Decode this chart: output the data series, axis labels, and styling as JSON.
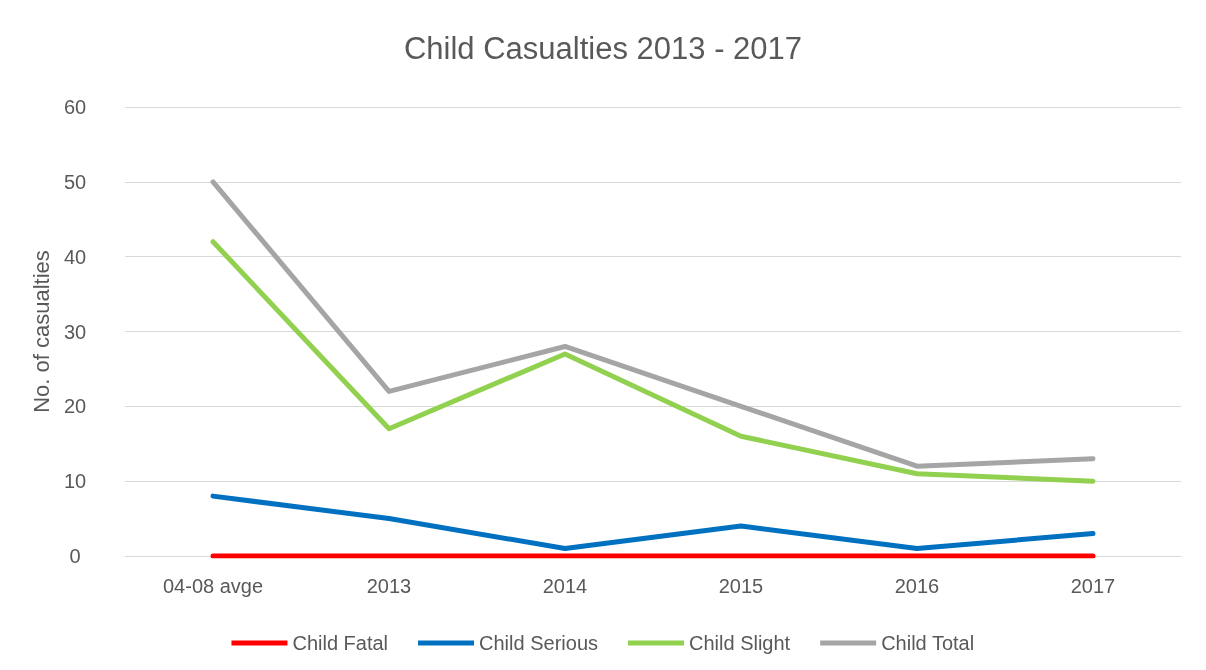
{
  "chart_data": {
    "type": "line",
    "title": "Child Casualties 2013 - 2017",
    "ylabel": "No. of casualties",
    "categories": [
      "04-08 avge",
      "2013",
      "2014",
      "2015",
      "2016",
      "2017"
    ],
    "series": [
      {
        "name": "Child Fatal",
        "color": "#ff0000",
        "values": [
          0,
          0,
          0,
          0,
          0,
          0
        ]
      },
      {
        "name": "Child Serious",
        "color": "#0070c0",
        "values": [
          8,
          5,
          1,
          4,
          1,
          3
        ]
      },
      {
        "name": "Child Slight",
        "color": "#92d050",
        "values": [
          42,
          17,
          27,
          16,
          11,
          10
        ]
      },
      {
        "name": "Child Total",
        "color": "#a5a5a5",
        "values": [
          50,
          22,
          28,
          20,
          12,
          13
        ]
      }
    ],
    "ylim": [
      0,
      60
    ],
    "yticks": [
      0,
      10,
      20,
      30,
      40,
      50,
      60
    ],
    "grid": "y",
    "legend": "bottom",
    "marker": "none",
    "line_style": "solid"
  }
}
